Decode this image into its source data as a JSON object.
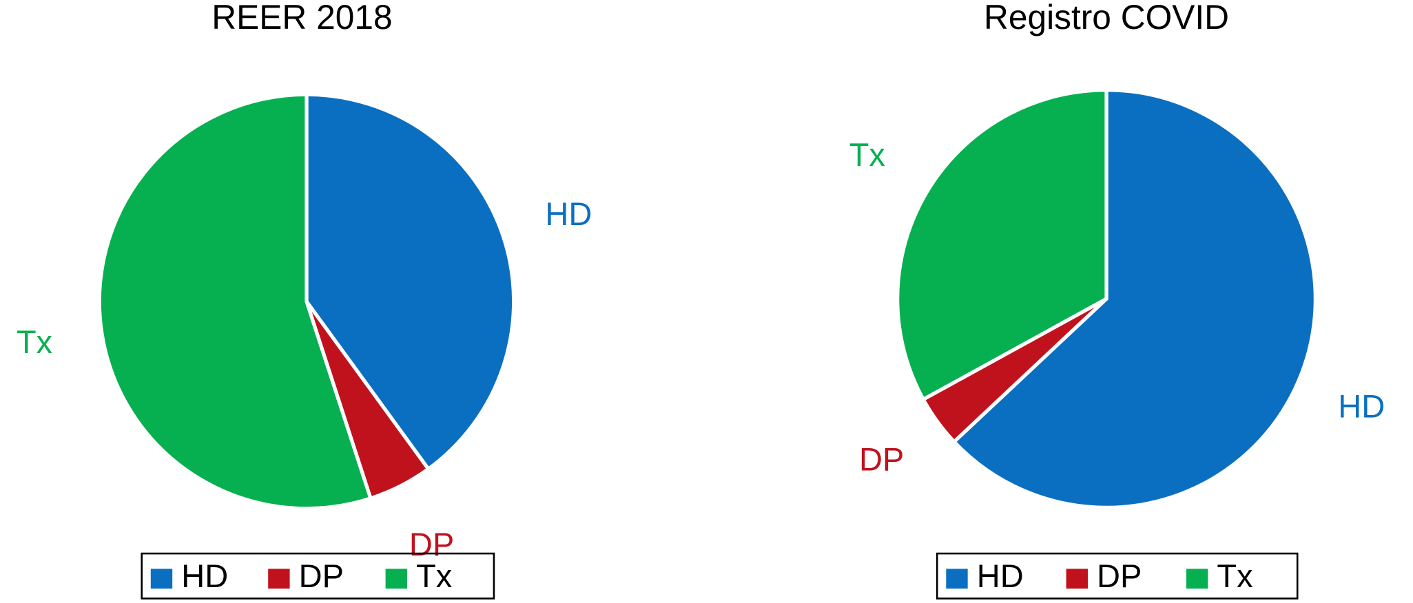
{
  "chart_data": [
    {
      "type": "pie",
      "title": "REER 2018",
      "categories": [
        "HD",
        "DP",
        "Tx"
      ],
      "values": [
        40,
        5,
        55
      ],
      "colors": [
        "#0b6fc1",
        "#c0121d",
        "#06b050"
      ]
    },
    {
      "type": "pie",
      "title": "Registro COVID",
      "categories": [
        "HD",
        "DP",
        "Tx"
      ],
      "values": [
        63,
        4,
        33
      ],
      "colors": [
        "#0b6fc1",
        "#c0121d",
        "#06b050"
      ]
    }
  ]
}
